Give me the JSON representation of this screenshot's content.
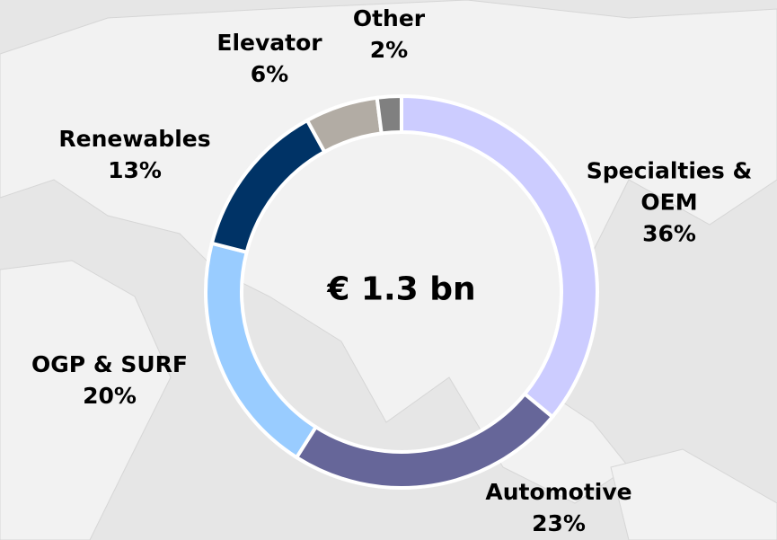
{
  "chart_data": {
    "type": "donut",
    "center_label": "€ 1.3 bn",
    "categories": [
      "Specialties & OEM",
      "Automotive",
      "OGP & SURF",
      "Renewables",
      "Elevator",
      "Other"
    ],
    "values": [
      36,
      23,
      20,
      13,
      6,
      2
    ],
    "value_labels": [
      "36%",
      "23%",
      "20%",
      "13%",
      "6%",
      "2%"
    ],
    "colors": [
      "#ccccff",
      "#666699",
      "#99ccff",
      "#003366",
      "#b2aca4",
      "#808080"
    ]
  }
}
